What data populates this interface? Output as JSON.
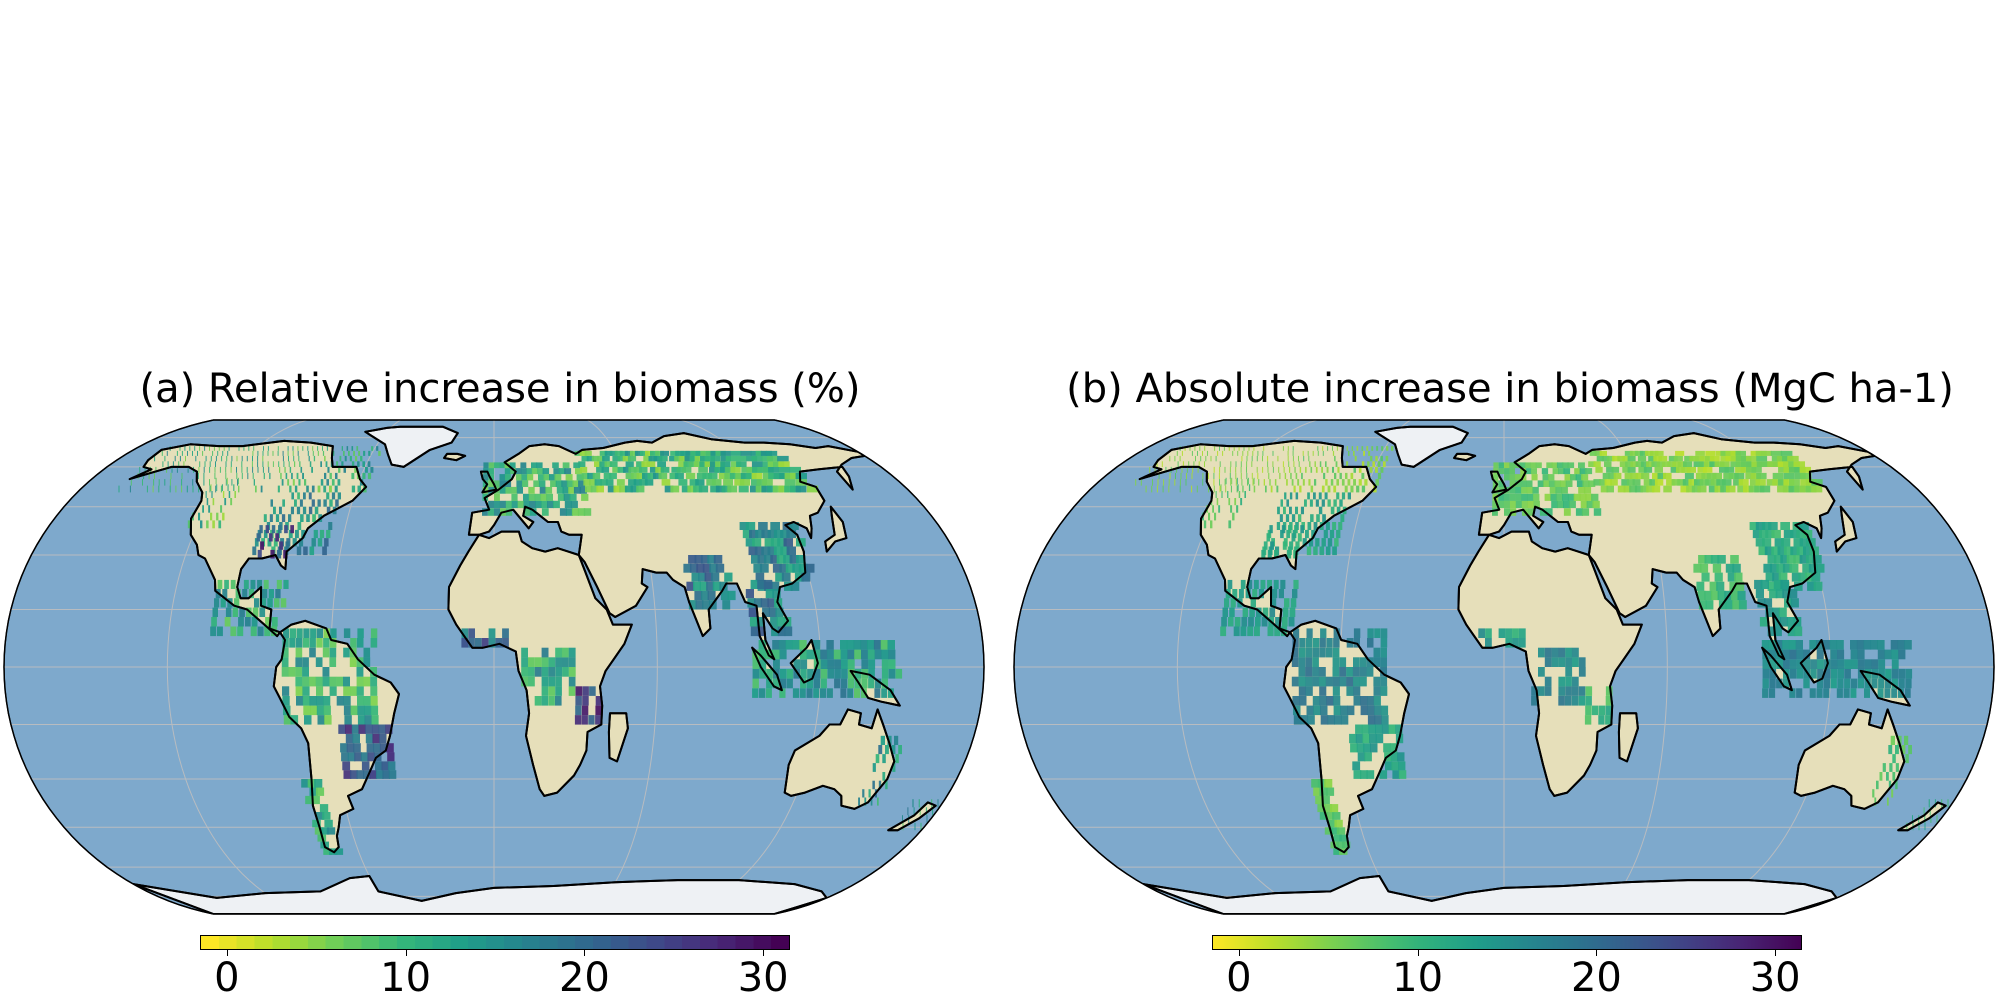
{
  "panels": [
    {
      "title": "(a) Relative increase in biomass (%)",
      "colorbar": {
        "min": -1.5,
        "max": 31.5,
        "ticks": [
          "0",
          "10",
          "20",
          "30"
        ],
        "tick_values": [
          0,
          10,
          20,
          30
        ],
        "colormap": "viridis_r",
        "discrete": true
      }
    },
    {
      "title": "(b) Absolute increase in biomass (MgC ha-1)",
      "colorbar": {
        "min": -1.5,
        "max": 31.5,
        "ticks": [
          "0",
          "10",
          "20",
          "30"
        ],
        "tick_values": [
          0,
          10,
          20,
          30
        ],
        "colormap": "viridis_r",
        "discrete": false
      }
    }
  ],
  "colors": {
    "ocean": "#7ea9cc",
    "land": "#e6dfba",
    "ice": "#eef1f4",
    "coastline": "#000000",
    "gridline": "#b8bcc0"
  }
}
